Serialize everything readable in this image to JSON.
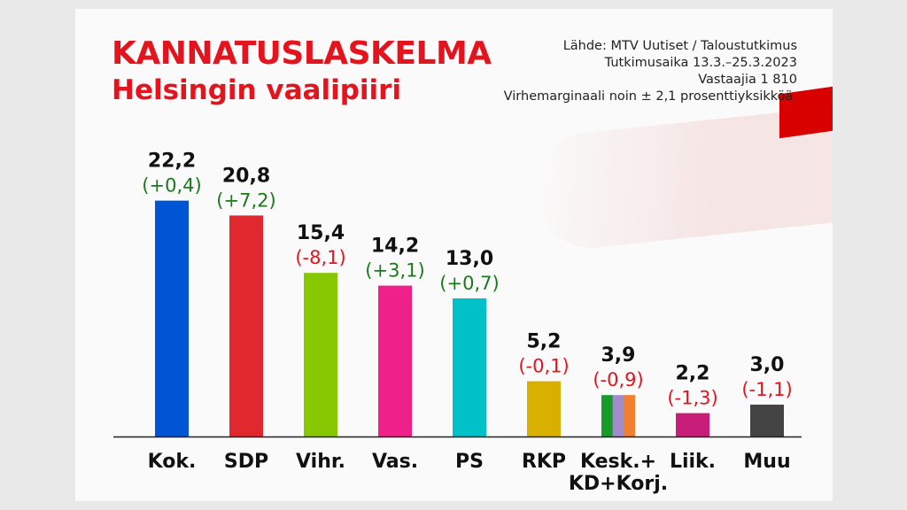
{
  "header": {
    "title": "KANNATUSLASKELMA",
    "subtitle": "Helsingin vaalipiiri",
    "meta": [
      "Lähde: MTV Uutiset / Taloustutkimus",
      "Tutkimusaika 13.3.–25.3.2023",
      "Vastaajia 1 810",
      "Virhemarginaali noin ± 2,1 prosenttiyksikköä."
    ]
  },
  "chart_data": {
    "type": "bar",
    "title": "KANNATUSLASKELMA",
    "subtitle": "Helsingin vaalipiiri",
    "categories": [
      "Kok.",
      "SDP",
      "Vihr.",
      "Vas.",
      "PS",
      "RKP",
      "Kesk.+\nKD+Korj.",
      "Liik.",
      "Muu"
    ],
    "category_lines": [
      [
        "Kok."
      ],
      [
        "SDP"
      ],
      [
        "Vihr."
      ],
      [
        "Vas."
      ],
      [
        "PS"
      ],
      [
        "RKP"
      ],
      [
        "Kesk.+",
        "KD+Korj."
      ],
      [
        "Liik."
      ],
      [
        "Muu"
      ]
    ],
    "values": [
      22.2,
      20.8,
      15.4,
      14.2,
      13.0,
      5.2,
      3.9,
      2.2,
      3.0
    ],
    "value_labels": [
      "22,2",
      "20,8",
      "15,4",
      "14,2",
      "13,0",
      "5,2",
      "3,9",
      "2,2",
      "3,0"
    ],
    "changes": [
      0.4,
      7.2,
      -8.1,
      3.1,
      0.7,
      -0.1,
      -0.9,
      -1.3,
      -1.1
    ],
    "change_labels": [
      "(+0,4)",
      "(+7,2)",
      "(-8,1)",
      "(+3,1)",
      "(+0,7)",
      "(-0,1)",
      "(-0,9)",
      "(-1,3)",
      "(-1,1)"
    ],
    "colors": [
      [
        "#0055d4"
      ],
      [
        "#e0282e"
      ],
      [
        "#88c800"
      ],
      [
        "#f0208a"
      ],
      [
        "#00c0c8"
      ],
      [
        "#d8b000"
      ],
      [
        "#1a9a2a",
        "#a08ccc",
        "#f08030"
      ],
      [
        "#c81e7a"
      ],
      [
        "#444444"
      ]
    ],
    "positive_color": "#1a7a1a",
    "negative_color": "#e4141e",
    "xlabel": "",
    "ylabel": "",
    "ylim": [
      0,
      22.2
    ],
    "grid": false
  }
}
